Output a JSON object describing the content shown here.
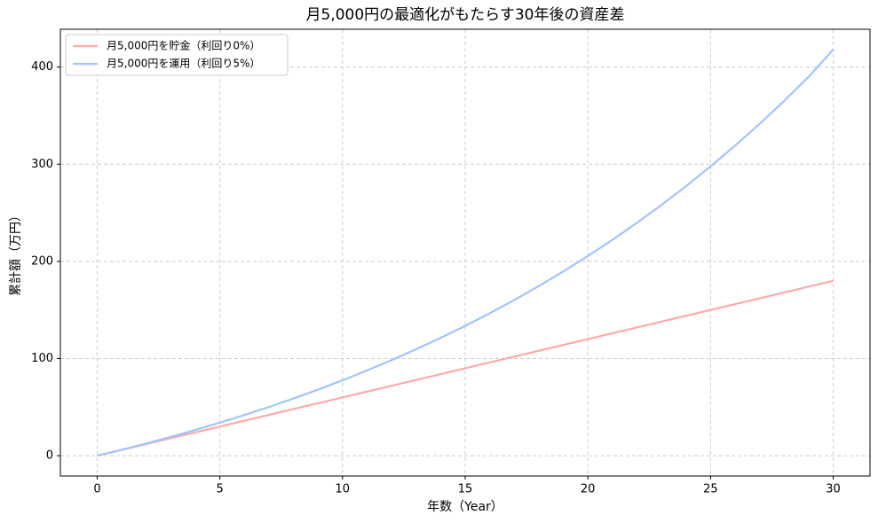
{
  "chart_data": {
    "type": "line",
    "title": "月5,000円の最適化がもたらす30年後の資産差",
    "x_label": "年数（Year）",
    "y_label": "累計額（万円）",
    "x": [
      0,
      1,
      2,
      3,
      4,
      5,
      6,
      7,
      8,
      9,
      10,
      11,
      12,
      13,
      14,
      15,
      16,
      17,
      18,
      19,
      20,
      21,
      22,
      23,
      24,
      25,
      26,
      27,
      28,
      29,
      30
    ],
    "series": [
      {
        "name": "月5,000円を貯金（利回り0%）",
        "color": "#ffaaaa",
        "values": [
          0,
          6,
          12,
          18,
          24,
          30,
          36,
          42,
          48,
          54,
          60,
          66,
          72,
          78,
          84,
          90,
          96,
          102,
          108,
          114,
          120,
          126,
          132,
          138,
          144,
          150,
          156,
          162,
          168,
          174,
          180
        ]
      },
      {
        "name": "月5,000円を運用（利回り5%）",
        "color": "#a0c4ff",
        "values": [
          0,
          6.14,
          12.59,
          19.38,
          26.51,
          34.0,
          41.88,
          50.16,
          58.87,
          68.02,
          77.64,
          87.75,
          98.38,
          109.55,
          121.3,
          133.64,
          146.62,
          160.26,
          174.6,
          189.67,
          205.52,
          222.17,
          239.68,
          258.08,
          277.42,
          297.75,
          319.13,
          341.59,
          365.21,
          390.04,
          418.0
        ]
      }
    ],
    "xlim": [
      -1.5,
      31.5
    ],
    "ylim": [
      -20.9,
      438.9
    ],
    "xticks": [
      0,
      5,
      10,
      15,
      20,
      25,
      30
    ],
    "yticks": [
      0,
      100,
      200,
      300,
      400
    ],
    "grid": true,
    "legend": "upper-left"
  }
}
